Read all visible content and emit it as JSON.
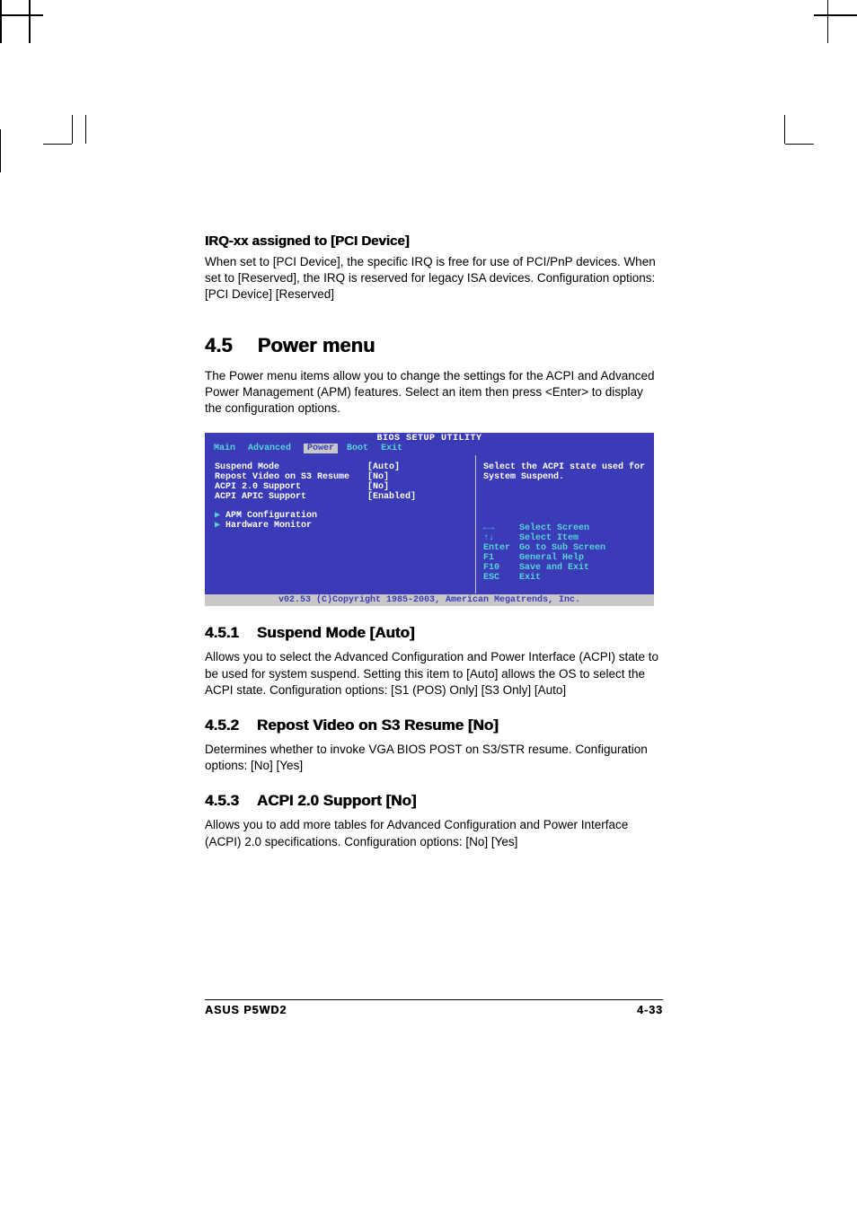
{
  "section_h4": {
    "title": "IRQ-xx assigned to [PCI Device]",
    "body": "When set to [PCI Device], the specific IRQ is free for use of PCI/PnP devices. When set to [Reserved], the IRQ is reserved for legacy ISA devices. Configuration options: [PCI Device] [Reserved]"
  },
  "section_4_5": {
    "num": "4.5",
    "title": "Power menu",
    "body": "The Power menu items allow you to change the settings for the ACPI and Advanced Power Management (APM) features. Select an item then press <Enter> to display the configuration options."
  },
  "bios": {
    "header": "BIOS SETUP UTILITY",
    "tabs": [
      "Main",
      "Advanced",
      "Power",
      "Boot",
      "Exit"
    ],
    "selected_tab": "Power",
    "rows": [
      {
        "label": "Suspend Mode",
        "value": "[Auto]"
      },
      {
        "label": "Repost Video on S3 Resume",
        "value": "[No]"
      },
      {
        "label": "ACPI 2.0 Support",
        "value": "[No]"
      },
      {
        "label": "ACPI APIC Support",
        "value": "[Enabled]"
      }
    ],
    "subs": [
      "APM Configuration",
      "Hardware Monitor"
    ],
    "help": "Select the ACPI state used for System Suspend.",
    "keys": [
      {
        "k": "←→",
        "d": "Select Screen"
      },
      {
        "k": "↑↓",
        "d": "Select Item"
      },
      {
        "k": "Enter",
        "d": "Go to Sub Screen"
      },
      {
        "k": "F1",
        "d": "General Help"
      },
      {
        "k": "F10",
        "d": "Save and Exit"
      },
      {
        "k": "ESC",
        "d": "Exit"
      }
    ],
    "footer": "v02.53 (C)Copyright 1985-2003, American Megatrends, Inc."
  },
  "section_4_5_1": {
    "num": "4.5.1",
    "title": "Suspend Mode [Auto]",
    "body": "Allows you to select the Advanced Configuration and Power Interface (ACPI) state to be used for system suspend. Setting this item to [Auto] allows the OS to select the ACPI state. Configuration options: [S1 (POS) Only] [S3 Only] [Auto]"
  },
  "section_4_5_2": {
    "num": "4.5.2",
    "title": "Repost Video on S3 Resume [No]",
    "body": "Determines whether to invoke VGA BIOS POST on S3/STR resume. Configuration options: [No] [Yes]"
  },
  "section_4_5_3": {
    "num": "4.5.3",
    "title": "ACPI 2.0 Support [No]",
    "body": "Allows you to add more tables for Advanced Configuration and Power Interface (ACPI) 2.0 specifications. Configuration options: [No] [Yes]"
  },
  "footer": {
    "left": "ASUS P5WD2",
    "right": "4-33"
  }
}
